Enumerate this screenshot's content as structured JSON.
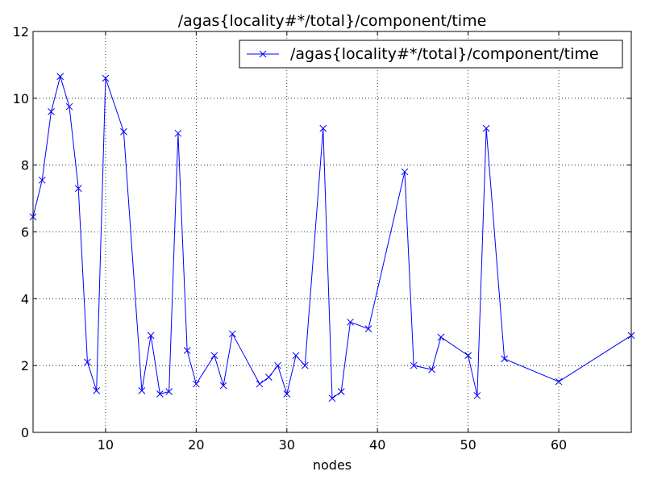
{
  "chart_data": {
    "type": "line",
    "title": "/agas{locality#*/total}/component/time",
    "xlabel": "nodes",
    "ylabel": "",
    "xlim": [
      2,
      68
    ],
    "ylim": [
      0,
      12
    ],
    "xticks": [
      10,
      20,
      30,
      40,
      50,
      60
    ],
    "yticks": [
      0,
      2,
      4,
      6,
      8,
      10,
      12
    ],
    "grid": true,
    "legend_position": "top-right",
    "series": [
      {
        "name": "/agas{locality#*/total}/component/time",
        "color": "#0000ff",
        "marker": "x",
        "x": [
          2,
          3,
          4,
          5,
          6,
          7,
          8,
          9,
          10,
          12,
          14,
          15,
          16,
          17,
          18,
          19,
          20,
          22,
          23,
          24,
          27,
          28,
          29,
          30,
          31,
          32,
          34,
          35,
          36,
          37,
          39,
          43,
          44,
          46,
          47,
          50,
          51,
          52,
          54,
          60,
          68
        ],
        "y": [
          6.45,
          7.55,
          9.6,
          10.65,
          9.75,
          7.3,
          2.1,
          1.25,
          10.6,
          9.0,
          1.25,
          2.9,
          1.15,
          1.22,
          8.95,
          2.45,
          1.45,
          2.3,
          1.4,
          2.95,
          1.45,
          1.65,
          2.0,
          1.15,
          2.3,
          2.0,
          9.1,
          1.02,
          1.22,
          3.3,
          3.1,
          7.8,
          2.0,
          1.88,
          2.85,
          2.3,
          1.1,
          9.1,
          2.2,
          1.52,
          2.9
        ]
      }
    ]
  }
}
